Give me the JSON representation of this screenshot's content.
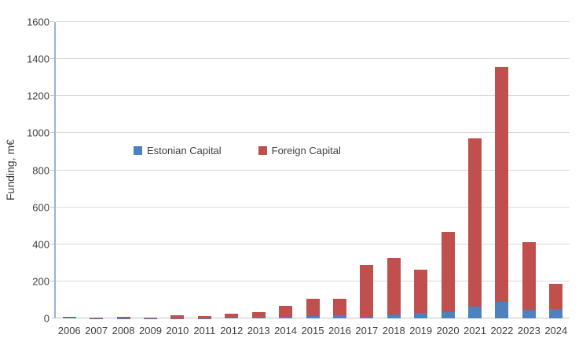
{
  "chart_data": {
    "type": "bar",
    "stacked": true,
    "title": "",
    "xlabel": "",
    "ylabel": "Funding, m€",
    "ylim": [
      0,
      1600
    ],
    "yticks": [
      0,
      200,
      400,
      600,
      800,
      1000,
      1200,
      1400,
      1600
    ],
    "grid": true,
    "legend_position": "inside-upper-left",
    "categories": [
      "2006",
      "2007",
      "2008",
      "2009",
      "2010",
      "2011",
      "2012",
      "2013",
      "2014",
      "2015",
      "2016",
      "2017",
      "2018",
      "2019",
      "2020",
      "2021",
      "2022",
      "2023",
      "2024"
    ],
    "series": [
      {
        "name": "Estonian Capital",
        "color": "#4F81BD",
        "values": [
          5,
          1,
          1,
          1,
          2,
          2,
          3,
          6,
          8,
          14,
          18,
          8,
          20,
          30,
          33,
          65,
          90,
          48,
          50
        ]
      },
      {
        "name": "Foreign Capital",
        "color": "#C0504D",
        "values": [
          2,
          2,
          7,
          3,
          16,
          9,
          22,
          27,
          62,
          91,
          89,
          282,
          307,
          233,
          432,
          905,
          1268,
          362,
          135
        ]
      }
    ],
    "totals": [
      7,
      3,
      8,
      4,
      18,
      11,
      25,
      33,
      70,
      105,
      107,
      290,
      327,
      263,
      465,
      970,
      1358,
      410,
      185
    ]
  },
  "colors": {
    "background": "#FFFFFF",
    "gridline": "#D9D9D9",
    "axis_line": "#95B3D7",
    "baseline": "#C6C6C6",
    "text": "#404040"
  }
}
